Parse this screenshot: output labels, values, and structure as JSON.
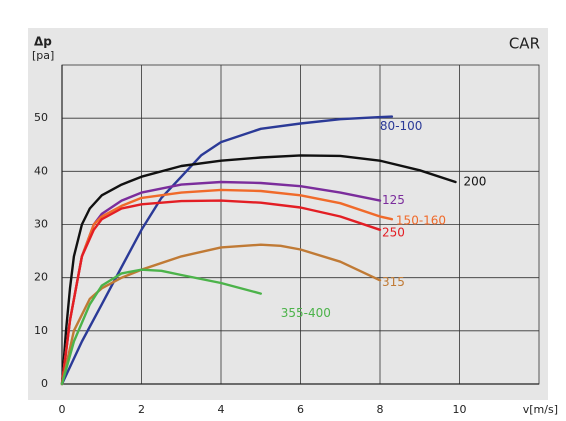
{
  "chart_data": {
    "type": "line",
    "title": "CAR",
    "y_label": "Δp",
    "y_unit": "[pa]",
    "x_label": "v[m/s]",
    "xlim": [
      0,
      12
    ],
    "xticks": [
      0,
      2,
      4,
      6,
      8,
      10
    ],
    "ylim": [
      0,
      60
    ],
    "yticks": [
      0,
      10,
      20,
      30,
      40,
      50
    ],
    "grid": true,
    "series": [
      {
        "name": "80-100",
        "color": "#2b3a97",
        "x": [
          0,
          0.5,
          1,
          1.5,
          2,
          2.5,
          3,
          3.5,
          4,
          5,
          6,
          7,
          8,
          8.3
        ],
        "values": [
          0,
          8,
          15,
          22,
          29,
          35,
          39,
          43,
          45.5,
          48,
          49,
          49.8,
          50.2,
          50.3
        ]
      },
      {
        "name": "200",
        "color": "#111111",
        "x": [
          0,
          0.1,
          0.2,
          0.3,
          0.5,
          0.7,
          1,
          1.5,
          2,
          3,
          4,
          5,
          6,
          7,
          8,
          9,
          9.9
        ],
        "values": [
          0,
          10,
          18,
          24,
          30,
          33,
          35.5,
          37.5,
          39,
          41,
          42,
          42.6,
          43,
          42.9,
          42,
          40.2,
          38
        ]
      },
      {
        "name": "125",
        "color": "#7b2d9c",
        "x": [
          0,
          0.2,
          0.5,
          0.8,
          1,
          1.5,
          2,
          3,
          4,
          5,
          6,
          7,
          8
        ],
        "values": [
          0,
          12,
          24,
          30,
          32,
          34.5,
          36,
          37.5,
          38,
          37.8,
          37.2,
          36,
          34.5
        ]
      },
      {
        "name": "150-160",
        "color": "#f06a2a",
        "x": [
          0,
          0.2,
          0.5,
          0.8,
          1,
          1.5,
          2,
          3,
          4,
          5,
          6,
          7,
          8,
          8.3
        ],
        "values": [
          0,
          12,
          24,
          30,
          31.5,
          33.5,
          35,
          36,
          36.5,
          36.3,
          35.5,
          34,
          31.5,
          31
        ]
      },
      {
        "name": "250",
        "color": "#e31e24",
        "x": [
          0,
          0.2,
          0.5,
          0.8,
          1,
          1.5,
          2,
          3,
          4,
          5,
          6,
          7,
          8
        ],
        "values": [
          0,
          12,
          24,
          29,
          31,
          33,
          33.8,
          34.4,
          34.5,
          34.1,
          33.2,
          31.5,
          29
        ]
      },
      {
        "name": "315",
        "color": "#c07a35",
        "x": [
          0,
          0.3,
          0.7,
          1,
          1.5,
          2,
          3,
          4,
          5,
          5.5,
          6,
          7,
          8
        ],
        "values": [
          0,
          10,
          16,
          18,
          20,
          21.5,
          24,
          25.7,
          26.2,
          26,
          25.3,
          23,
          19.5
        ]
      },
      {
        "name": "355-400",
        "color": "#4cb34a",
        "x": [
          0,
          0.3,
          0.7,
          1,
          1.5,
          2,
          2.5,
          3,
          4,
          5
        ],
        "values": [
          0,
          8,
          15,
          18.5,
          20.8,
          21.5,
          21.3,
          20.5,
          19,
          17
        ]
      }
    ]
  }
}
